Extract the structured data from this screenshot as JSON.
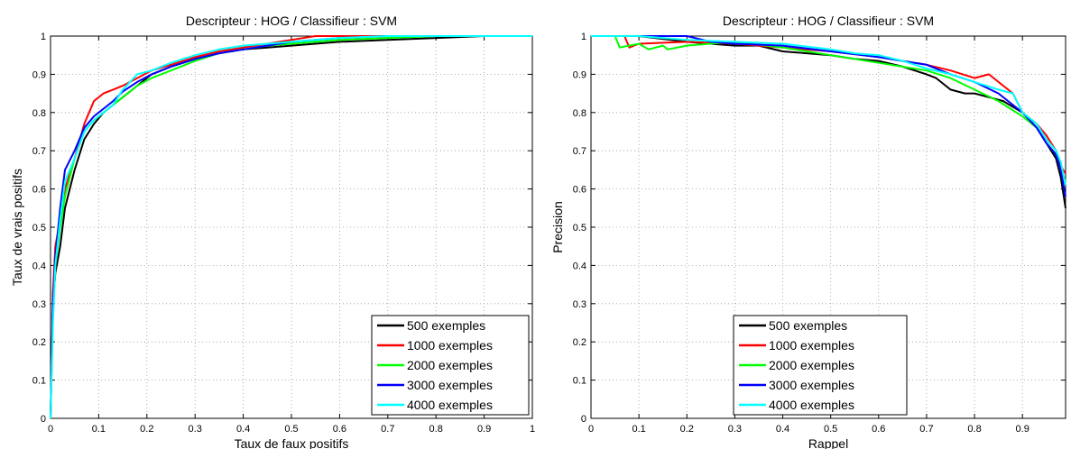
{
  "chart_data": [
    {
      "type": "line",
      "title": "Descripteur : HOG / Classifieur : SVM",
      "xlabel": "Taux de faux positifs",
      "ylabel": "Taux de vrais positifs",
      "xlim": [
        0,
        1
      ],
      "ylim": [
        0,
        1
      ],
      "xticks": [
        "0",
        "0.1",
        "0.2",
        "0.3",
        "0.4",
        "0.5",
        "0.6",
        "0.7",
        "0.8",
        "0.9",
        "1"
      ],
      "yticks": [
        "0",
        "0.1",
        "0.2",
        "0.3",
        "0.4",
        "0.5",
        "0.6",
        "0.7",
        "0.8",
        "0.9",
        "1"
      ],
      "grid": true,
      "legend_position": "bottom-right",
      "series": [
        {
          "name": "500 exemples",
          "color": "#000000",
          "x": [
            0,
            0.005,
            0.01,
            0.02,
            0.03,
            0.05,
            0.07,
            0.09,
            0.11,
            0.13,
            0.15,
            0.18,
            0.21,
            0.25,
            0.3,
            0.35,
            0.4,
            0.45,
            0.5,
            0.55,
            0.6,
            0.7,
            0.8,
            0.9,
            1
          ],
          "y": [
            0,
            0.3,
            0.38,
            0.45,
            0.55,
            0.65,
            0.73,
            0.77,
            0.8,
            0.82,
            0.84,
            0.87,
            0.9,
            0.92,
            0.94,
            0.955,
            0.965,
            0.97,
            0.975,
            0.98,
            0.985,
            0.99,
            0.995,
            1,
            1
          ]
        },
        {
          "name": "1000 exemples",
          "color": "#ff0000",
          "x": [
            0,
            0.005,
            0.01,
            0.02,
            0.03,
            0.05,
            0.07,
            0.09,
            0.11,
            0.13,
            0.15,
            0.18,
            0.21,
            0.25,
            0.3,
            0.35,
            0.4,
            0.45,
            0.5,
            0.55,
            0.6,
            0.7,
            0.8,
            0.9,
            1
          ],
          "y": [
            0,
            0.33,
            0.45,
            0.52,
            0.6,
            0.68,
            0.77,
            0.83,
            0.85,
            0.86,
            0.87,
            0.89,
            0.91,
            0.925,
            0.945,
            0.96,
            0.97,
            0.98,
            0.99,
            1,
            1,
            1,
            1,
            1,
            1
          ]
        },
        {
          "name": "2000 exemples",
          "color": "#00ff00",
          "x": [
            0,
            0.005,
            0.01,
            0.02,
            0.03,
            0.05,
            0.07,
            0.09,
            0.11,
            0.13,
            0.15,
            0.18,
            0.21,
            0.25,
            0.3,
            0.35,
            0.4,
            0.45,
            0.5,
            0.55,
            0.6,
            0.7,
            0.8,
            0.9,
            1
          ],
          "y": [
            0,
            0.28,
            0.4,
            0.5,
            0.58,
            0.68,
            0.75,
            0.78,
            0.8,
            0.82,
            0.84,
            0.87,
            0.89,
            0.91,
            0.935,
            0.955,
            0.965,
            0.975,
            0.98,
            0.985,
            0.99,
            0.995,
            1,
            1,
            1
          ]
        },
        {
          "name": "3000 exemples",
          "color": "#0000ff",
          "x": [
            0,
            0.005,
            0.01,
            0.02,
            0.03,
            0.05,
            0.07,
            0.09,
            0.11,
            0.13,
            0.15,
            0.18,
            0.21,
            0.25,
            0.3,
            0.35,
            0.4,
            0.45,
            0.5,
            0.55,
            0.6,
            0.7,
            0.8,
            0.9,
            1
          ],
          "y": [
            0,
            0.3,
            0.42,
            0.55,
            0.65,
            0.7,
            0.76,
            0.79,
            0.81,
            0.83,
            0.855,
            0.88,
            0.9,
            0.92,
            0.94,
            0.955,
            0.965,
            0.975,
            0.985,
            0.99,
            0.995,
            1,
            1,
            1,
            1
          ]
        },
        {
          "name": "4000 exemples",
          "color": "#00ffff",
          "x": [
            0,
            0.005,
            0.01,
            0.02,
            0.03,
            0.05,
            0.07,
            0.09,
            0.11,
            0.13,
            0.15,
            0.18,
            0.21,
            0.25,
            0.3,
            0.35,
            0.4,
            0.45,
            0.5,
            0.55,
            0.6,
            0.7,
            0.8,
            0.9,
            1
          ],
          "y": [
            0,
            0.25,
            0.4,
            0.52,
            0.62,
            0.68,
            0.75,
            0.78,
            0.8,
            0.82,
            0.86,
            0.9,
            0.91,
            0.93,
            0.95,
            0.965,
            0.975,
            0.98,
            0.985,
            0.99,
            0.995,
            1,
            1,
            1,
            1
          ]
        }
      ]
    },
    {
      "type": "line",
      "title": "Descripteur : HOG / Classifieur : SVM",
      "xlabel": "Rappel",
      "ylabel": "Precision",
      "xlim": [
        0,
        0.99
      ],
      "ylim": [
        0,
        1
      ],
      "xticks": [
        "0",
        "0.1",
        "0.2",
        "0.3",
        "0.4",
        "0.5",
        "0.6",
        "0.7",
        "0.8",
        "0.9"
      ],
      "yticks": [
        "0",
        "0.1",
        "0.2",
        "0.3",
        "0.4",
        "0.5",
        "0.6",
        "0.7",
        "0.8",
        "0.9",
        "1"
      ],
      "grid": true,
      "legend_position": "bottom-right",
      "series": [
        {
          "name": "500 exemples",
          "color": "#000000",
          "x": [
            0,
            0.1,
            0.2,
            0.3,
            0.35,
            0.4,
            0.45,
            0.5,
            0.55,
            0.6,
            0.65,
            0.7,
            0.72,
            0.75,
            0.78,
            0.8,
            0.83,
            0.86,
            0.9,
            0.93,
            0.95,
            0.97,
            0.98,
            0.99
          ],
          "y": [
            1,
            1,
            0.985,
            0.975,
            0.975,
            0.96,
            0.955,
            0.95,
            0.94,
            0.935,
            0.92,
            0.9,
            0.89,
            0.86,
            0.85,
            0.85,
            0.84,
            0.83,
            0.8,
            0.76,
            0.72,
            0.68,
            0.63,
            0.55
          ]
        },
        {
          "name": "1000 exemples",
          "color": "#ff0000",
          "x": [
            0,
            0.07,
            0.08,
            0.1,
            0.2,
            0.3,
            0.4,
            0.5,
            0.6,
            0.65,
            0.7,
            0.75,
            0.8,
            0.83,
            0.85,
            0.88,
            0.9,
            0.93,
            0.95,
            0.97,
            0.98,
            0.99
          ],
          "y": [
            1,
            1,
            0.97,
            0.98,
            0.985,
            0.98,
            0.97,
            0.96,
            0.945,
            0.935,
            0.925,
            0.91,
            0.89,
            0.9,
            0.88,
            0.85,
            0.8,
            0.77,
            0.74,
            0.7,
            0.66,
            0.64
          ]
        },
        {
          "name": "2000 exemples",
          "color": "#00ff00",
          "x": [
            0,
            0.05,
            0.06,
            0.1,
            0.12,
            0.15,
            0.16,
            0.2,
            0.3,
            0.4,
            0.5,
            0.6,
            0.7,
            0.75,
            0.8,
            0.85,
            0.9,
            0.93,
            0.95,
            0.97,
            0.98,
            0.99
          ],
          "y": [
            1,
            1,
            0.97,
            0.98,
            0.965,
            0.975,
            0.965,
            0.975,
            0.985,
            0.97,
            0.95,
            0.93,
            0.91,
            0.89,
            0.86,
            0.83,
            0.79,
            0.76,
            0.72,
            0.69,
            0.65,
            0.62
          ]
        },
        {
          "name": "3000 exemples",
          "color": "#0000ff",
          "x": [
            0,
            0.1,
            0.2,
            0.25,
            0.3,
            0.4,
            0.5,
            0.6,
            0.65,
            0.7,
            0.75,
            0.8,
            0.85,
            0.9,
            0.93,
            0.95,
            0.97,
            0.98,
            0.99
          ],
          "y": [
            1,
            1,
            1,
            0.985,
            0.98,
            0.975,
            0.96,
            0.945,
            0.935,
            0.925,
            0.9,
            0.88,
            0.85,
            0.8,
            0.76,
            0.72,
            0.69,
            0.65,
            0.58
          ]
        },
        {
          "name": "4000 exemples",
          "color": "#00ffff",
          "x": [
            0,
            0.1,
            0.2,
            0.3,
            0.4,
            0.5,
            0.55,
            0.6,
            0.65,
            0.7,
            0.75,
            0.8,
            0.85,
            0.88,
            0.9,
            0.93,
            0.95,
            0.97,
            0.98,
            0.99
          ],
          "y": [
            1,
            1,
            0.99,
            0.985,
            0.98,
            0.965,
            0.955,
            0.95,
            0.935,
            0.915,
            0.9,
            0.88,
            0.86,
            0.85,
            0.8,
            0.77,
            0.73,
            0.7,
            0.67,
            0.61
          ]
        }
      ]
    }
  ]
}
